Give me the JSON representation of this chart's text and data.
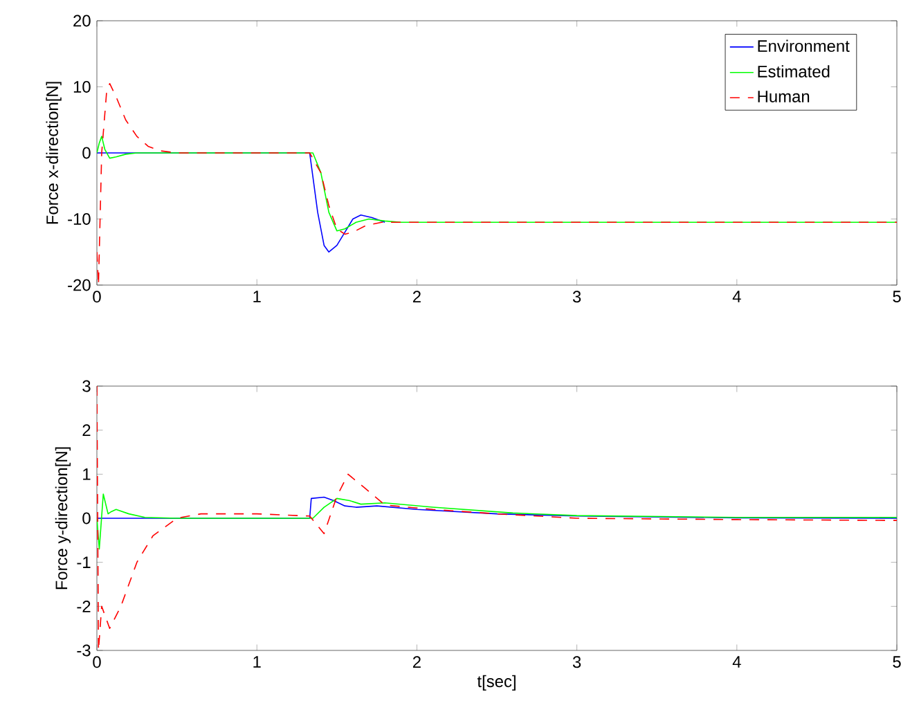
{
  "chart_data": [
    {
      "type": "line",
      "ylabel": "Force x-direction[N]",
      "xlim": [
        0,
        5
      ],
      "ylim": [
        -20,
        20
      ],
      "xticks": [
        0,
        1,
        2,
        3,
        4,
        5
      ],
      "yticks": [
        -20,
        -10,
        0,
        10,
        20
      ],
      "grid": false,
      "legend": "top right",
      "marker": "none",
      "series": [
        {
          "name": "Environment",
          "color": "#0000ff",
          "line_style": "solid",
          "x": [
            0,
            1.33,
            1.38,
            1.42,
            1.45,
            1.5,
            1.55,
            1.6,
            1.65,
            1.72,
            1.8
          ],
          "values": [
            0,
            0,
            -9,
            -14,
            -15,
            -14,
            -12,
            -10,
            -9.4,
            -9.8,
            -10.5
          ]
        },
        {
          "name": "Estimated",
          "color": "#00ff00",
          "line_style": "solid",
          "x": [
            0,
            0.015,
            0.03,
            0.05,
            0.08,
            0.12,
            0.18,
            0.25,
            0.5,
            1.35,
            1.4,
            1.45,
            1.5,
            1.55,
            1.62,
            1.7,
            1.8,
            1.9,
            2.0,
            3.0,
            4.0,
            5.0
          ],
          "values": [
            0,
            1.5,
            2.5,
            0.5,
            -0.8,
            -0.6,
            -0.2,
            0,
            0,
            0,
            -3,
            -9,
            -11.8,
            -11.5,
            -10.5,
            -10,
            -10.3,
            -10.5,
            -10.5,
            -10.5,
            -10.5,
            -10.5
          ]
        },
        {
          "name": "Human",
          "color": "#ff0000",
          "line_style": "dashed",
          "x": [
            0,
            0.01,
            0.03,
            0.06,
            0.08,
            0.12,
            0.18,
            0.25,
            0.32,
            0.4,
            0.5,
            1.33,
            1.4,
            1.45,
            1.5,
            1.55,
            1.6,
            1.68,
            1.78,
            1.9,
            2.0,
            3.0,
            4.0,
            5.0
          ],
          "values": [
            -15,
            -20,
            0,
            9,
            10.5,
            8.5,
            5,
            2.5,
            1,
            0.3,
            0,
            0,
            -3,
            -8,
            -11.5,
            -12.3,
            -12,
            -11,
            -10.5,
            -10.5,
            -10.5,
            -10.5,
            -10.5,
            -10.5
          ]
        }
      ]
    },
    {
      "type": "line",
      "xlabel": "t[sec]",
      "ylabel": "Force y-direction[N]",
      "xlim": [
        0,
        5
      ],
      "ylim": [
        -3,
        3
      ],
      "xticks": [
        0,
        1,
        2,
        3,
        4,
        5
      ],
      "yticks": [
        -3,
        -2,
        -1,
        0,
        1,
        2,
        3
      ],
      "grid": false,
      "legend": false,
      "marker": "none",
      "series": [
        {
          "color": "#0000ff",
          "line_style": "solid",
          "x": [
            0,
            1.33,
            1.34,
            1.42,
            1.48,
            1.55,
            1.62,
            1.75,
            2.0,
            2.5,
            3.0,
            4.0,
            5.0
          ],
          "values": [
            0,
            0,
            0.45,
            0.48,
            0.4,
            0.28,
            0.25,
            0.28,
            0.2,
            0.1,
            0.05,
            0.01,
            0
          ]
        },
        {
          "color": "#00ff00",
          "line_style": "solid",
          "x": [
            0,
            0.015,
            0.04,
            0.07,
            0.09,
            0.12,
            0.2,
            0.3,
            0.5,
            1.35,
            1.42,
            1.5,
            1.58,
            1.65,
            1.8,
            2.1,
            2.6,
            3.0,
            4.0,
            5.0
          ],
          "values": [
            0,
            -0.7,
            0.55,
            0.1,
            0.15,
            0.2,
            0.1,
            0.02,
            0,
            0,
            0.25,
            0.45,
            0.4,
            0.32,
            0.35,
            0.25,
            0.12,
            0.06,
            0.02,
            0.02
          ]
        },
        {
          "color": "#ff0000",
          "line_style": "dashed",
          "x": [
            0,
            0.01,
            0.03,
            0.05,
            0.08,
            0.15,
            0.25,
            0.35,
            0.5,
            0.65,
            1.0,
            1.33,
            1.42,
            1.5,
            1.57,
            1.67,
            1.8,
            2.1,
            2.5,
            3.0,
            4.0,
            5.0
          ],
          "values": [
            3,
            -3,
            -2,
            -2.2,
            -2.5,
            -2,
            -1,
            -0.4,
            0,
            0.1,
            0.1,
            0.05,
            -0.35,
            0.5,
            1.0,
            0.7,
            0.3,
            0.2,
            0.1,
            0,
            -0.03,
            -0.05
          ]
        }
      ]
    }
  ]
}
